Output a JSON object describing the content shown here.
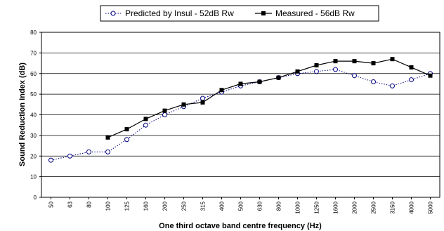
{
  "chart_data": {
    "type": "line",
    "title": "",
    "xlabel": "One third octave band centre frequency (Hz)",
    "ylabel": "Sound Reduction Index (dB)",
    "ylim": [
      0,
      80
    ],
    "yticks": [
      "0",
      "10",
      "20",
      "30",
      "40",
      "50",
      "60",
      "70",
      "80"
    ],
    "grid": "horizontal",
    "legend_position": "top",
    "categories": [
      "50",
      "63",
      "80",
      "100",
      "125",
      "160",
      "200",
      "250",
      "315",
      "400",
      "500",
      "630",
      "800",
      "1000",
      "1250",
      "1600",
      "2000",
      "2500",
      "3150",
      "4000",
      "5000"
    ],
    "series": [
      {
        "name": "Predicted by Insul - 52dB Rw",
        "style": "dotted-open-circle",
        "color": "#000080",
        "values": [
          18,
          20,
          22,
          22,
          28,
          35,
          40,
          44,
          48,
          51,
          54,
          56,
          58,
          60,
          61,
          62,
          59,
          56,
          54,
          57,
          60
        ]
      },
      {
        "name": "Measured - 56dB Rw",
        "style": "solid-filled-square",
        "color": "#000000",
        "values": [
          null,
          null,
          null,
          29,
          33,
          38,
          42,
          45,
          46,
          52,
          55,
          56,
          58,
          61,
          64,
          66,
          66,
          65,
          67,
          63,
          59
        ]
      }
    ]
  }
}
